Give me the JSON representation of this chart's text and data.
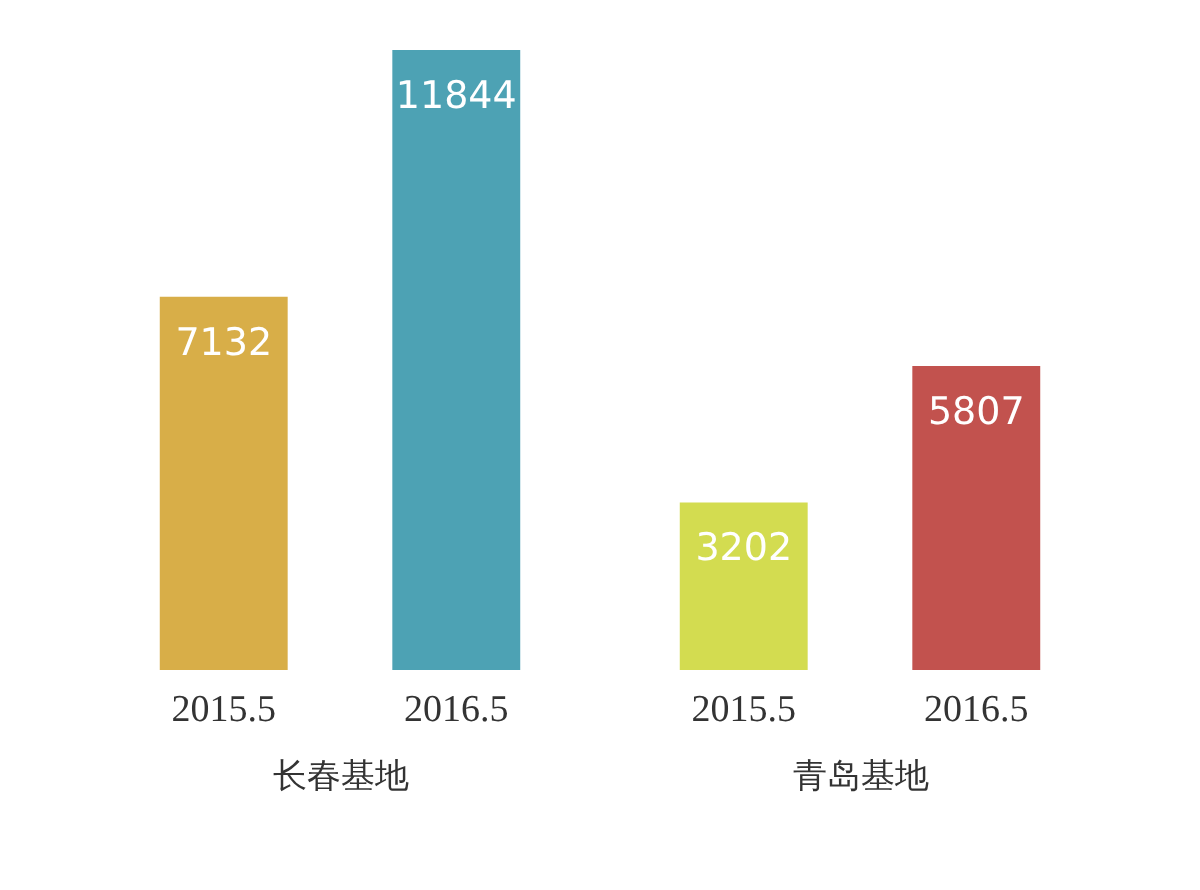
{
  "chart_data": [
    {
      "type": "bar",
      "categories": [
        "2015.5",
        "2016.5"
      ],
      "values": [
        7132,
        11844
      ],
      "colors": [
        "#d8ae48",
        "#4da2b4"
      ],
      "xlabel": "长春基地",
      "data_labels": true
    },
    {
      "type": "bar",
      "categories": [
        "2015.5",
        "2016.5"
      ],
      "values": [
        3202,
        5807
      ],
      "colors": [
        "#d3dc50",
        "#c2524e"
      ],
      "xlabel": "青岛基地",
      "data_labels": true
    }
  ]
}
